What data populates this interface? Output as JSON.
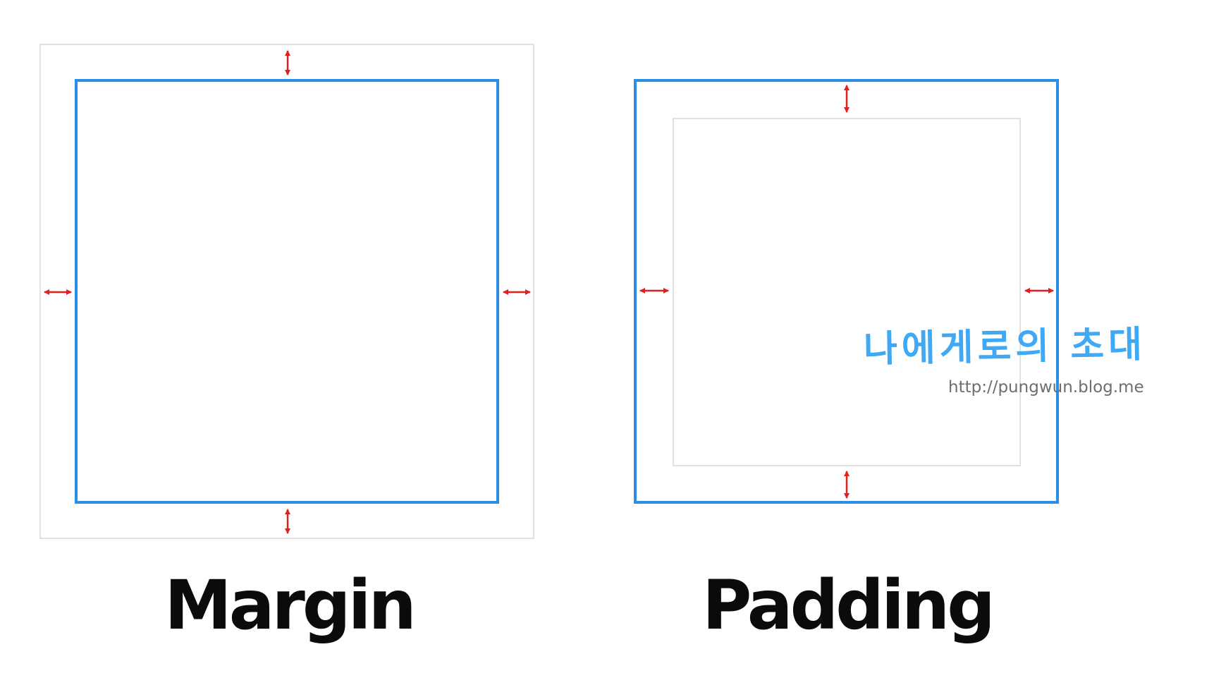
{
  "labels": {
    "margin": "Margin",
    "padding": "Padding"
  },
  "watermark": {
    "title": "나에게로의 초대",
    "url": "http://pungwun.blog.me"
  },
  "colors": {
    "box_border": "#2a8ee8",
    "outer_border": "#e1e1e1",
    "arrow": "#e0201c",
    "watermark_title": "#3fa9f5",
    "watermark_url": "#6e6e6e",
    "caption": "#0b0b0b"
  }
}
